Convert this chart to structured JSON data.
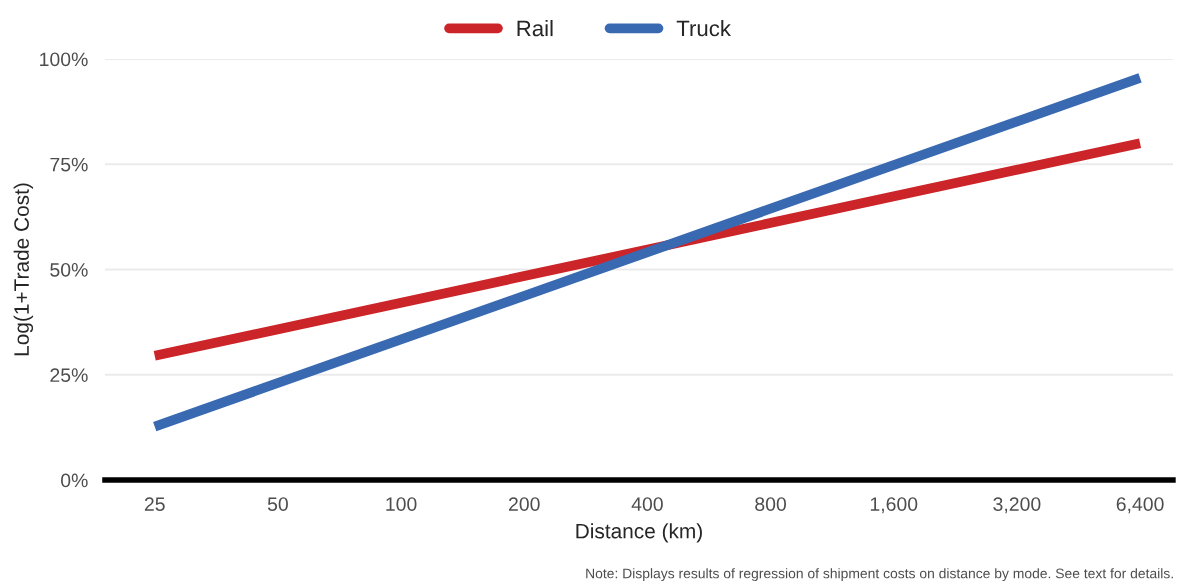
{
  "chart_data": {
    "type": "line",
    "xlabel": "Distance (km)",
    "ylabel": "Log(1+Trade Cost)",
    "log": "x",
    "x": [
      25,
      6400
    ],
    "series": [
      {
        "name": "Rail",
        "color": "#cc2529",
        "values": [
          29.5,
          80
        ]
      },
      {
        "name": "Truck",
        "color": "#396ab1",
        "values": [
          12.7,
          95.5
        ]
      }
    ],
    "xlim": [
      18.9,
      7700
    ],
    "xticks": [
      25,
      50,
      100,
      200,
      400,
      800,
      {
        "value": 1600,
        "label": "1,600"
      },
      {
        "value": 3200,
        "label": "3,200"
      },
      {
        "value": 6400,
        "label": "6,400"
      }
    ],
    "ylim": [
      0,
      100
    ],
    "yticks": [
      {
        "value": 0,
        "label": "0%"
      },
      {
        "value": 25,
        "label": "25%"
      },
      {
        "value": 50,
        "label": "50%"
      },
      {
        "value": 75,
        "label": "75%"
      },
      {
        "value": 100,
        "label": "100%"
      }
    ],
    "grid": "y",
    "legend": "top",
    "marker": "none",
    "line_style": "solid",
    "annotations": [
      "Note: Displays results of regression of shipment costs on distance by mode. See text for details."
    ]
  }
}
